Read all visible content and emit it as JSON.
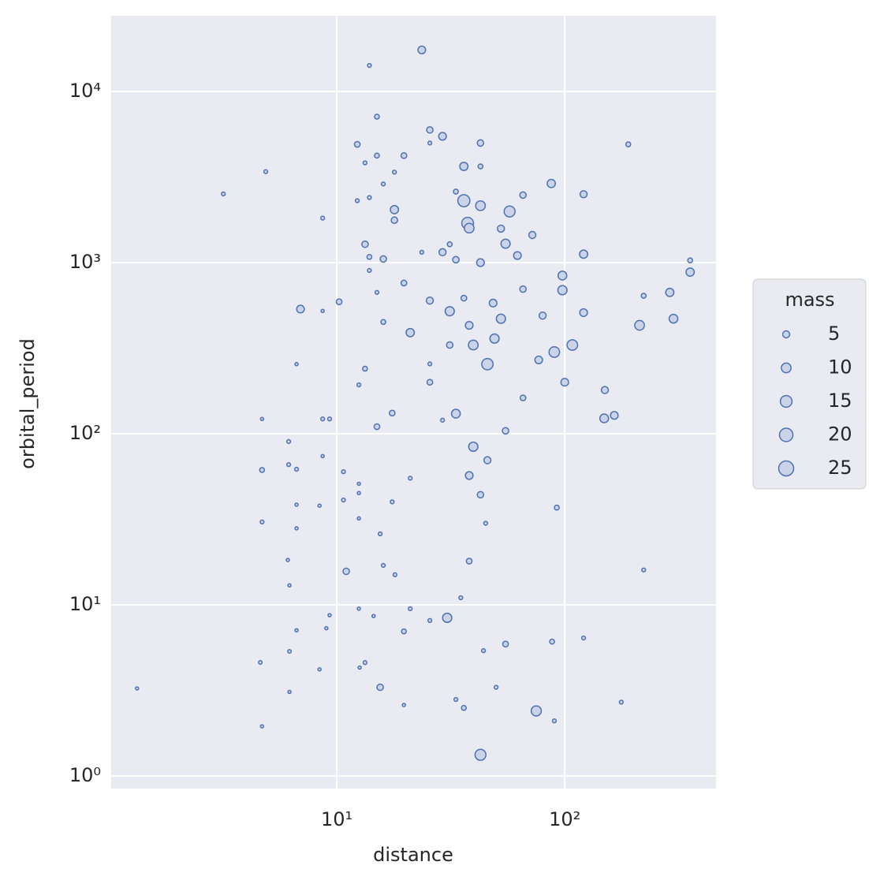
{
  "chart_data": {
    "type": "scatter",
    "xlabel": "distance",
    "ylabel": "orbital_period",
    "xscale": "log",
    "yscale": "log",
    "grid": true,
    "color": "#4c72b0",
    "fill": "#cbd3e8",
    "background": "#eaeaf2",
    "xlim": [
      1.024,
      461
    ],
    "ylim": [
      0.844,
      27700
    ],
    "xticks": [
      {
        "value": 10,
        "label": "10¹"
      },
      {
        "value": 100,
        "label": "10²"
      }
    ],
    "yticks": [
      {
        "value": 1,
        "label": "10⁰"
      },
      {
        "value": 10,
        "label": "10¹"
      },
      {
        "value": 100,
        "label": "10²"
      },
      {
        "value": 1000,
        "label": "10³"
      },
      {
        "value": 10000,
        "label": "10⁴"
      }
    ],
    "legend": {
      "title": "mass",
      "sizes": [
        5,
        10,
        15,
        20,
        25
      ],
      "position": "right"
    },
    "x": [
      1.33,
      3.18,
      4.88,
      4.62,
      4.7,
      4.7,
      4.7,
      4.7,
      6.15,
      6.15,
      6.1,
      6.2,
      6.2,
      6.2,
      6.66,
      6.66,
      6.66,
      6.66,
      6.66,
      6.93,
      8.67,
      8.67,
      8.67,
      8.67,
      8.4,
      8.4,
      9.3,
      9.0,
      9.3,
      10.24,
      10.7,
      10.7,
      11,
      12.3,
      12.3,
      12.5,
      12.5,
      12.5,
      12.5,
      12.5,
      12.6,
      13.3,
      13.3,
      13.9,
      13.9,
      13.9,
      13.9,
      13.3,
      13.3,
      14.5,
      15,
      15,
      15,
      15,
      15.5,
      15.5,
      16,
      16,
      16,
      16,
      17.9,
      17.9,
      17.9,
      17.5,
      17.5,
      18,
      19.7,
      19.7,
      19.7,
      19.7,
      21,
      21,
      21,
      23.6,
      23.6,
      25.6,
      25.6,
      25.6,
      25.6,
      25.6,
      25.6,
      29.1,
      29.1,
      29.1,
      30.5,
      31.3,
      31.3,
      31.3,
      33.3,
      33.3,
      33.3,
      33.3,
      36.1,
      36.1,
      36.1,
      36.1,
      37.5,
      38.1,
      38.1,
      38.1,
      38.1,
      39.7,
      39.7,
      42.7,
      42.7,
      42.7,
      42.7,
      42.7,
      42.7,
      45.8,
      45.8,
      48.5,
      49.2,
      52.5,
      52.5,
      55,
      57.3,
      55,
      62,
      65.6,
      65.6,
      65.6,
      72.1,
      75,
      76.9,
      80,
      87.3,
      90,
      92.3,
      97.7,
      97.7,
      100,
      108,
      121,
      121,
      121,
      121,
      150,
      149,
      165,
      177,
      190,
      213,
      222,
      222,
      289,
      300,
      355,
      355,
      44,
      50,
      45,
      35,
      55,
      88,
      90
    ],
    "y": [
      3.25,
      2520,
      3400,
      4.61,
      1.95,
      30.5,
      61.4,
      122,
      90,
      66,
      18.3,
      13,
      5.35,
      3.1,
      255,
      62,
      38.5,
      28,
      7.1,
      535,
      1820,
      522,
      122,
      74,
      38,
      4.2,
      8.7,
      7.3,
      122,
      590,
      60,
      41,
      15.7,
      4910,
      2300,
      193,
      51,
      45,
      32,
      9.5,
      4.3,
      3830,
      1280,
      1080,
      900,
      2400,
      14200,
      240,
      4.6,
      8.6,
      7130,
      4220,
      670,
      110,
      3.3,
      26,
      2880,
      1050,
      450,
      17,
      3380,
      2040,
      1770,
      132,
      40,
      15,
      4220,
      760,
      7,
      2.6,
      390,
      55,
      9.5,
      17500,
      1150,
      5960,
      5000,
      600,
      200,
      256,
      8.1,
      5470,
      1150,
      120,
      8.4,
      1280,
      520,
      330,
      2600,
      1040,
      131,
      2.8,
      3650,
      2300,
      620,
      2.5,
      1700,
      1590,
      430,
      57,
      18,
      84,
      330,
      5000,
      3650,
      2150,
      1000,
      1.33,
      44,
      255,
      70,
      580,
      360,
      1580,
      470,
      1290,
      1990,
      104,
      1100,
      700,
      2480,
      162,
      1450,
      2.4,
      270,
      490,
      2900,
      300,
      37,
      840,
      690,
      200,
      330,
      2510,
      1120,
      510,
      6.4,
      180,
      123,
      128,
      2.7,
      4910,
      430,
      16,
      640,
      670,
      470,
      880,
      1030,
      5.4,
      3.3,
      30,
      11,
      5.9,
      6.1,
      2.1
    ],
    "size": [
      0.5,
      1,
      1,
      0.8,
      0.5,
      1,
      2,
      0.5,
      1,
      1,
      0.5,
      0.5,
      0.8,
      0.5,
      0.5,
      1,
      0.5,
      0.5,
      0.5,
      6,
      1,
      0.5,
      1,
      0.5,
      0.5,
      0.5,
      0.5,
      0.5,
      1,
      3,
      1,
      1,
      4,
      3,
      1,
      1,
      0.5,
      0.5,
      0.5,
      0.5,
      0.5,
      1,
      4,
      2,
      1,
      1,
      1,
      2,
      1,
      0.5,
      2,
      2,
      1,
      3,
      4,
      1,
      1,
      4,
      2,
      1,
      1,
      7,
      4,
      3,
      1,
      1,
      3,
      3,
      2,
      0.5,
      7,
      1,
      1,
      6,
      1,
      4,
      1,
      5,
      3,
      1,
      1,
      6,
      5,
      1,
      9,
      2,
      9,
      4,
      2,
      4,
      8,
      1,
      7,
      16,
      3,
      2,
      15,
      10,
      6,
      6,
      3,
      9,
      10,
      4,
      2,
      10,
      6,
      13,
      4,
      14,
      5,
      6,
      9,
      5,
      9,
      9,
      13,
      4,
      6,
      4,
      4,
      3,
      5,
      11,
      6,
      5,
      7,
      12,
      2,
      8,
      9,
      6,
      12,
      5,
      7,
      6,
      1,
      5,
      8,
      6,
      1,
      2,
      10,
      1,
      2,
      7,
      8,
      7,
      2,
      1,
      1,
      1,
      1,
      3,
      2,
      1
    ]
  }
}
